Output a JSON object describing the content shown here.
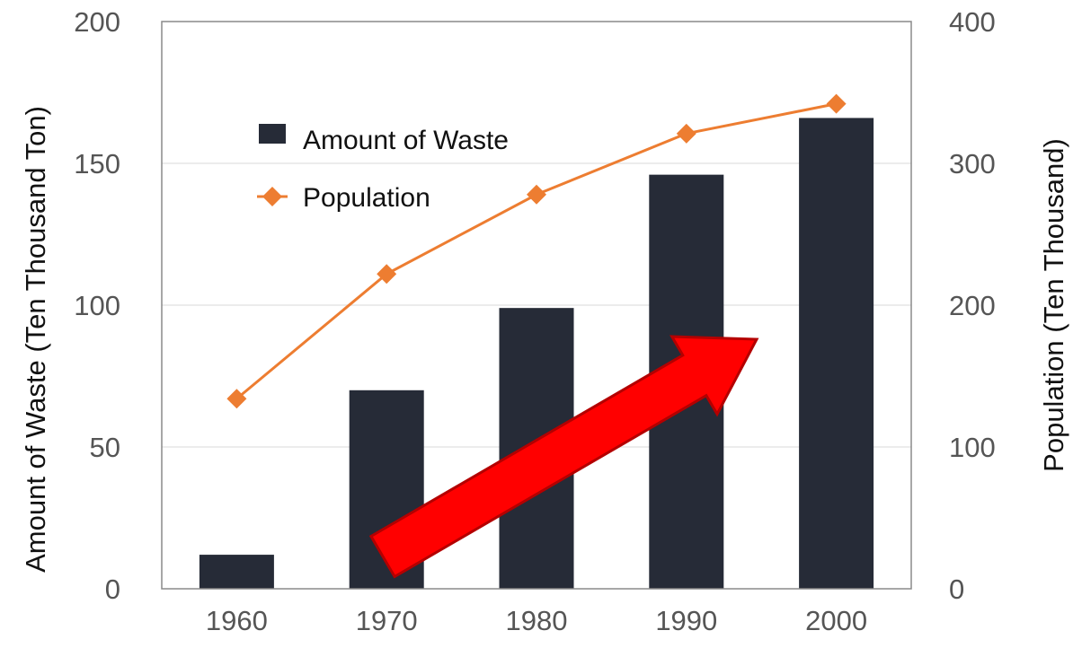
{
  "chart_data": {
    "type": "bar",
    "categories": [
      "1960",
      "1970",
      "1980",
      "1990",
      "2000"
    ],
    "series": [
      {
        "name": "Amount of Waste",
        "type": "bar",
        "axis": "left",
        "values": [
          12,
          70,
          99,
          146,
          166
        ],
        "color": "#262b37"
      },
      {
        "name": "Population",
        "type": "line",
        "axis": "right",
        "marker": "diamond",
        "values": [
          134,
          222,
          278,
          321,
          342
        ],
        "color": "#ed7d31"
      }
    ],
    "ylabel": "Amount of Waste (Ten Thousand Ton)",
    "y2label": "Population (Ten Thousand)",
    "ylim": [
      0,
      200
    ],
    "y2lim": [
      0,
      400
    ],
    "yticks": [
      "0",
      "50",
      "100",
      "150",
      "200"
    ],
    "y2ticks": [
      "0",
      "100",
      "200",
      "300",
      "400"
    ],
    "grid": true,
    "legend": "top-left",
    "annotation": {
      "type": "arrow",
      "color": "#ff0000",
      "meaning": "upward trend"
    }
  }
}
